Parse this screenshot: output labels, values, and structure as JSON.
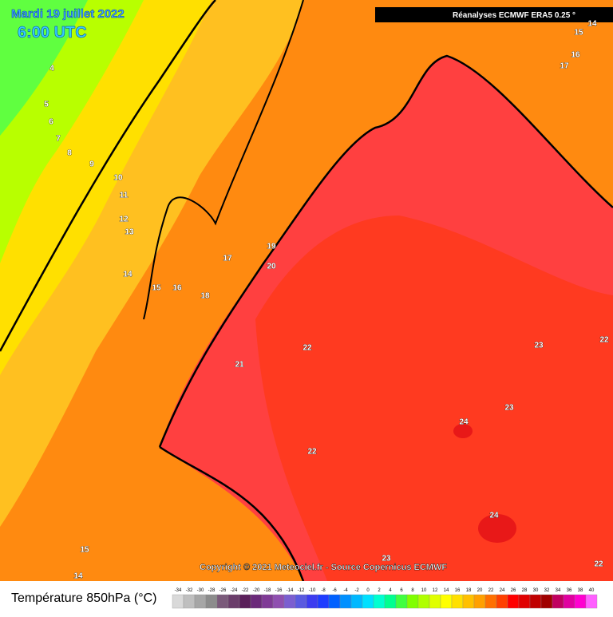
{
  "header": {
    "date": "Mardi 19 juillet 2022",
    "time": "6:00 UTC",
    "source": "Réanalyses ECMWF ERA5 0.25 °"
  },
  "copyright": "Copyright © 2021 Meteociel.fr - Source Copernicus ECMWF",
  "contour_labels": [
    4,
    5,
    6,
    7,
    8,
    9,
    10,
    11,
    12,
    13,
    14,
    15,
    16,
    18,
    17,
    19,
    20,
    21,
    22,
    22,
    23,
    22,
    23,
    24,
    24,
    23,
    22,
    15,
    14,
    14,
    15,
    16,
    17
  ],
  "legend": {
    "title": "Température 850hPa (°C)",
    "ticks": [
      -34,
      -32,
      -30,
      -28,
      -26,
      -24,
      -22,
      -20,
      -18,
      -16,
      -14,
      -12,
      -10,
      -8,
      -6,
      -4,
      -2,
      0,
      2,
      4,
      6,
      8,
      10,
      12,
      14,
      16,
      18,
      20,
      22,
      24,
      26,
      28,
      30,
      32,
      34,
      36,
      38,
      40
    ],
    "colors": [
      "#d9d9d9",
      "#bfbfbf",
      "#a6a6a6",
      "#8c8c8c",
      "#7a5a7a",
      "#6a3d6a",
      "#5a1f5a",
      "#6b2a7a",
      "#7f3a96",
      "#8f4fb0",
      "#7b5ed0",
      "#5a5ae0",
      "#3c3cf0",
      "#1e3cff",
      "#0060ff",
      "#0090ff",
      "#00b8ff",
      "#00e0ff",
      "#00ffd0",
      "#00ff90",
      "#40ff40",
      "#80ff00",
      "#b0ff00",
      "#e0ff00",
      "#ffff00",
      "#ffe000",
      "#ffc000",
      "#ffa000",
      "#ff7000",
      "#ff4000",
      "#ff0000",
      "#e00000",
      "#c00000",
      "#a00000",
      "#c00060",
      "#e000a0",
      "#ff00d0",
      "#ff60ff"
    ]
  }
}
